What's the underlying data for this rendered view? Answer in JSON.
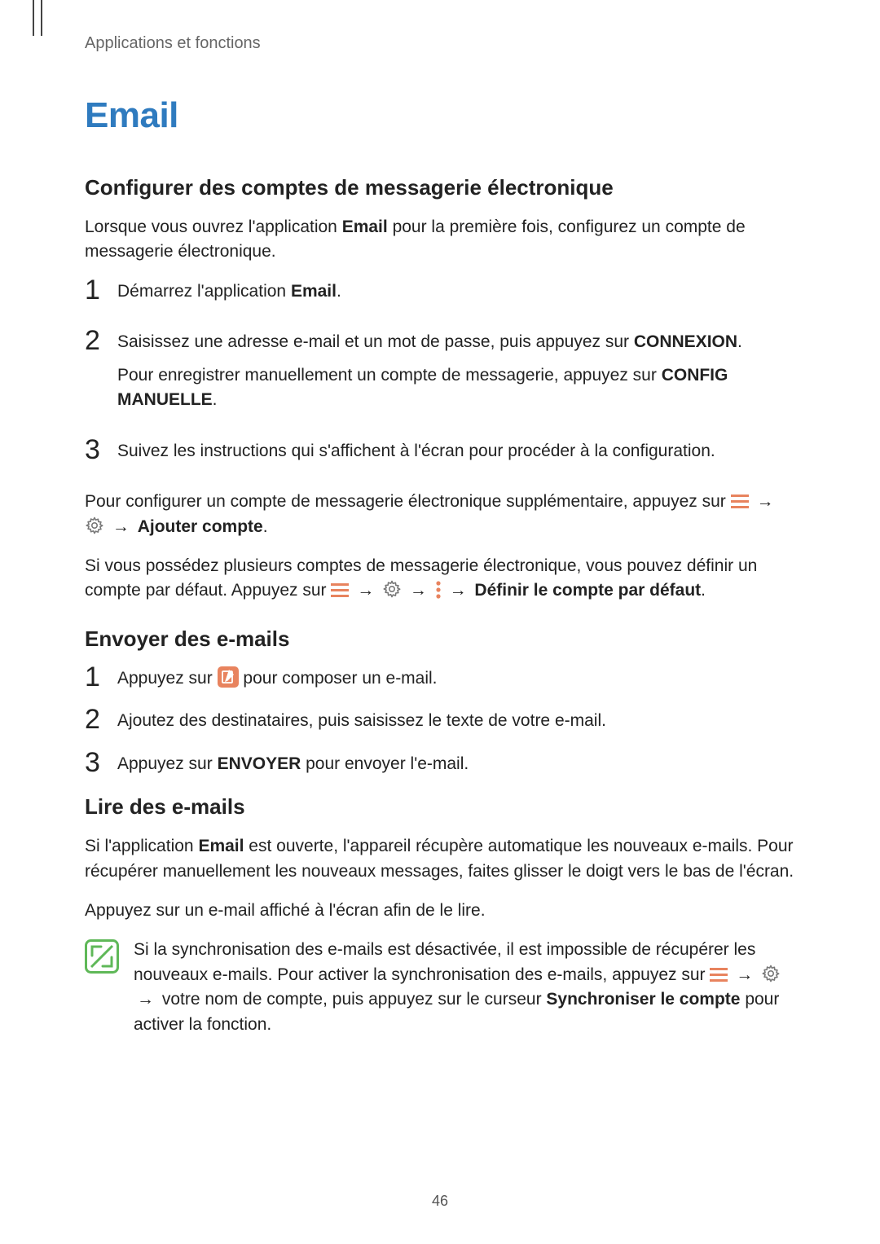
{
  "breadcrumb": "Applications et fonctions",
  "page_number": "46",
  "h1": "Email",
  "colors": {
    "accent_blue": "#2f7bbf",
    "hamburger": "#e8835e",
    "dots": "#e8835e",
    "gear": "#777",
    "compose_bg": "#e8835e",
    "note_border": "#5fb858",
    "note_stroke": "#5fb858"
  },
  "section1": {
    "heading": "Configurer des comptes de messagerie électronique",
    "intro_a": "Lorsque vous ouvrez l'application ",
    "intro_b_bold": "Email",
    "intro_c": " pour la première fois, configurez un compte de messagerie électronique.",
    "steps": [
      {
        "num": "1",
        "lines": [
          {
            "segs": [
              {
                "t": "Démarrez l'application "
              },
              {
                "t": "Email",
                "bold": true
              },
              {
                "t": "."
              }
            ]
          }
        ]
      },
      {
        "num": "2",
        "lines": [
          {
            "segs": [
              {
                "t": "Saisissez une adresse e-mail et un mot de passe, puis appuyez sur "
              },
              {
                "t": "CONNEXION",
                "bold": true
              },
              {
                "t": "."
              }
            ]
          },
          {
            "segs": [
              {
                "t": "Pour enregistrer manuellement un compte de messagerie, appuyez sur "
              },
              {
                "t": "CONFIG MANUELLE",
                "bold": true
              },
              {
                "t": "."
              }
            ]
          }
        ]
      },
      {
        "num": "3",
        "lines": [
          {
            "segs": [
              {
                "t": "Suivez les instructions qui s'affichent à l'écran pour procéder à la configuration."
              }
            ]
          }
        ]
      }
    ],
    "after1_a": "Pour configurer un compte de messagerie électronique supplémentaire, appuyez sur ",
    "after1_b_bold": "Ajouter compte",
    "after1_c": ".",
    "after2_a": "Si vous possédez plusieurs comptes de messagerie électronique, vous pouvez définir un compte par défaut. Appuyez sur ",
    "after2_b_bold": "Définir le compte par défaut",
    "after2_c": "."
  },
  "section2": {
    "heading": "Envoyer des e-mails",
    "steps": [
      {
        "num": "1",
        "pre": "Appuyez sur ",
        "post": " pour composer un e-mail."
      },
      {
        "num": "2",
        "text": "Ajoutez des destinataires, puis saisissez le texte de votre e-mail."
      },
      {
        "num": "3",
        "pre": "Appuyez sur ",
        "bold": "ENVOYER",
        "post": " pour envoyer l'e-mail."
      }
    ]
  },
  "section3": {
    "heading": "Lire des e-mails",
    "p1_a": "Si l'application ",
    "p1_b_bold": "Email",
    "p1_c": " est ouverte, l'appareil récupère automatique les nouveaux e-mails. Pour récupérer manuellement les nouveaux messages, faites glisser le doigt vers le bas de l'écran.",
    "p2": "Appuyez sur un e-mail affiché à l'écran afin de le lire.",
    "note_a": "Si la synchronisation des e-mails est désactivée, il est impossible de récupérer les nouveaux e-mails. Pour activer la synchronisation des e-mails, appuyez sur ",
    "note_b": " votre nom de compte, puis appuyez sur le curseur ",
    "note_c_bold": "Synchroniser le compte",
    "note_d": " pour activer la fonction."
  },
  "arrow_glyph": "→"
}
